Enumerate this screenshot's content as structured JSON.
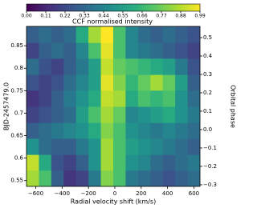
{
  "chart_data": {
    "type": "heatmap",
    "colorbar_label": "CCF normalised intensity",
    "xlabel": "Radial velocity shift (km/s)",
    "ylabel": "BJD-2457479.0",
    "y2label": "Orbital phase",
    "colormap": [
      "#440154",
      "#472d7b",
      "#3b528b",
      "#2c728e",
      "#21918c",
      "#28ae80",
      "#5ec962",
      "#addc30",
      "#fde725"
    ],
    "zlim": [
      0,
      0.99
    ],
    "zticks": [
      {
        "value": 0,
        "label": "0.00"
      },
      0.11,
      0.22,
      0.33,
      0.44,
      0.55,
      0.66,
      0.77,
      0.88,
      0.99
    ],
    "xlim": [
      -670,
      646
    ],
    "xticks": [
      {
        "value": -600,
        "label": "−600"
      },
      {
        "value": -400,
        "label": "−400"
      },
      {
        "value": -200,
        "label": "−200"
      },
      0,
      200,
      400,
      600
    ],
    "ylim": [
      0.537,
      0.893
    ],
    "yticks": [
      0.55,
      0.6,
      0.65,
      0.7,
      0.75,
      0.8,
      0.85
    ],
    "y2lim": [
      -0.309,
      0.561
    ],
    "y2ticks": [
      {
        "value": -0.3,
        "label": "−0.3"
      },
      {
        "value": -0.2,
        "label": "−0.2"
      },
      {
        "value": -0.1,
        "label": "−0.1"
      },
      {
        "value": 0,
        "label": "0.0"
      },
      0.1,
      0.2,
      0.3,
      0.4,
      0.5
    ],
    "x": [
      -623,
      -529,
      -435,
      -341,
      -247,
      -153,
      -59,
      35,
      129,
      223,
      317,
      411,
      505,
      599
    ],
    "y": [
      0.555,
      0.591,
      0.626,
      0.662,
      0.697,
      0.733,
      0.769,
      0.804,
      0.84,
      0.875
    ],
    "values": [
      [
        0.85,
        0.7,
        0.3,
        0.15,
        0.2,
        0.4,
        0.8,
        0.7,
        0.4,
        0.35,
        0.3,
        0.25,
        0.3,
        0.35
      ],
      [
        0.9,
        0.6,
        0.25,
        0.2,
        0.3,
        0.5,
        0.85,
        0.7,
        0.5,
        0.45,
        0.35,
        0.3,
        0.35,
        0.4
      ],
      [
        0.5,
        0.35,
        0.3,
        0.3,
        0.4,
        0.5,
        0.85,
        0.7,
        0.55,
        0.5,
        0.45,
        0.4,
        0.35,
        0.3
      ],
      [
        0.3,
        0.35,
        0.4,
        0.45,
        0.5,
        0.6,
        0.8,
        0.7,
        0.5,
        0.45,
        0.4,
        0.45,
        0.4,
        0.35
      ],
      [
        0.2,
        0.25,
        0.3,
        0.35,
        0.55,
        0.7,
        0.85,
        0.75,
        0.45,
        0.5,
        0.55,
        0.6,
        0.5,
        0.4
      ],
      [
        0.15,
        0.2,
        0.3,
        0.4,
        0.5,
        0.6,
        0.9,
        0.85,
        0.6,
        0.7,
        0.65,
        0.7,
        0.5,
        0.35
      ],
      [
        0.25,
        0.2,
        0.25,
        0.35,
        0.45,
        0.55,
        0.95,
        0.8,
        0.65,
        0.75,
        0.85,
        0.75,
        0.55,
        0.3
      ],
      [
        0.35,
        0.25,
        0.2,
        0.3,
        0.4,
        0.55,
        0.9,
        0.75,
        0.7,
        0.65,
        0.6,
        0.55,
        0.4,
        0.25
      ],
      [
        0.2,
        0.3,
        0.35,
        0.3,
        0.45,
        0.7,
        0.95,
        0.7,
        0.45,
        0.4,
        0.35,
        0.3,
        0.25,
        0.2
      ],
      [
        0.3,
        0.35,
        0.3,
        0.35,
        0.6,
        0.85,
        0.99,
        0.7,
        0.45,
        0.35,
        0.3,
        0.35,
        0.3,
        0.25
      ]
    ]
  }
}
